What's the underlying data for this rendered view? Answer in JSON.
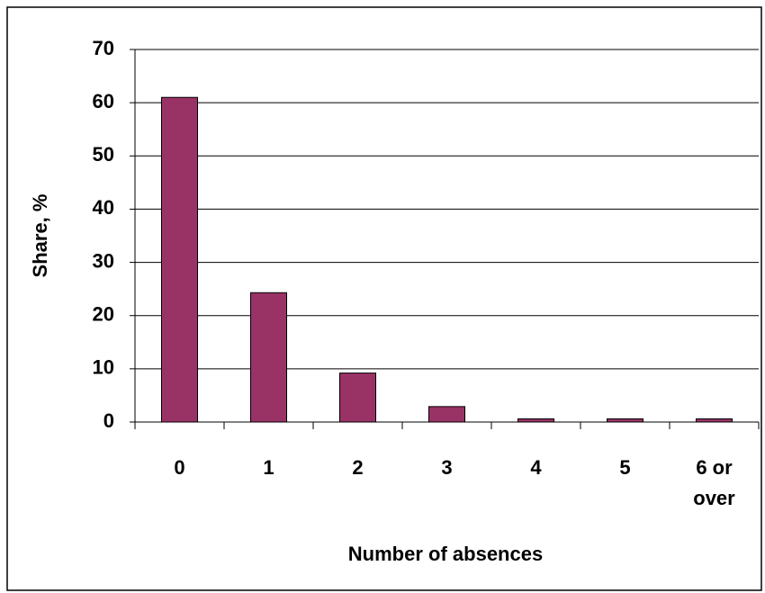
{
  "chart_data": {
    "type": "bar",
    "x_label": "Number of absences",
    "y_label": "Share,  %",
    "categories": [
      "0",
      "1",
      "2",
      "3",
      "4",
      "5",
      "6 or over"
    ],
    "values": [
      61,
      24.3,
      9.2,
      2.9,
      0.6,
      0.6,
      0.6
    ],
    "color": "#993366",
    "ylim": [
      0,
      70
    ],
    "yticks": [
      0,
      10,
      20,
      30,
      40,
      50,
      60,
      70
    ],
    "grid": true
  }
}
